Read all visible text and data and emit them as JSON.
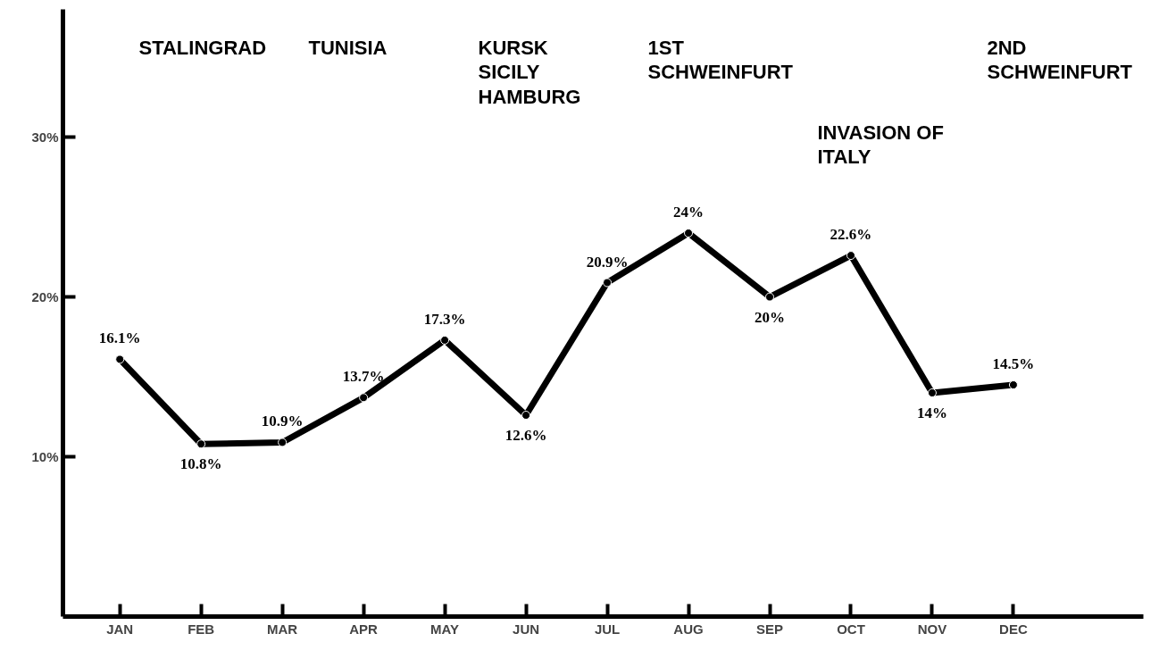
{
  "chart_data": {
    "type": "line",
    "categories": [
      "JAN",
      "FEB",
      "MAR",
      "APR",
      "MAY",
      "JUN",
      "JUL",
      "AUG",
      "SEP",
      "OCT",
      "NOV",
      "DEC"
    ],
    "series": [
      {
        "color": "#000000",
        "values": [
          16.1,
          10.8,
          10.9,
          13.7,
          17.3,
          12.6,
          20.9,
          24,
          20,
          22.6,
          14,
          14.5
        ],
        "value_labels": [
          "16.1%",
          "10.8%",
          "10.9%",
          "13.7%",
          "17.3%",
          "12.6%",
          "20.9%",
          "24%",
          "20%",
          "22.6%",
          "14%",
          "14.5%"
        ]
      }
    ],
    "ylim": [
      0,
      38
    ],
    "yticks": [
      {
        "value": 10,
        "label": "10%"
      },
      {
        "value": 20,
        "label": "20%"
      },
      {
        "value": 30,
        "label": "30%"
      }
    ],
    "annotations": [
      "STALINGRAD",
      "TUNISIA",
      "KURSK\nSICILY\nHAMBURG",
      "1ST\nSCHWEINFURT",
      "INVASION OF\nITALY",
      "2ND\nSCHWEINFURT"
    ],
    "grid": false,
    "marker": "circle",
    "line_style": "solid"
  }
}
